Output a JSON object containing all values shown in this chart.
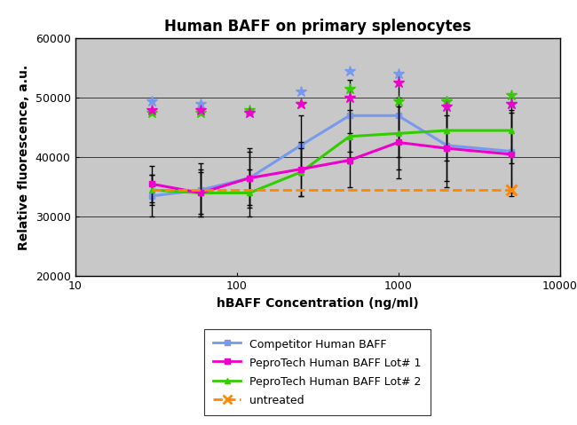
{
  "title": "Human BAFF on primary splenocytes",
  "xlabel": "hBAFF Concentration (ng/ml)",
  "ylabel": "Relative fluorescence, a.u.",
  "xlim": [
    10,
    10000
  ],
  "ylim": [
    20000,
    60000
  ],
  "yticks": [
    20000,
    30000,
    40000,
    50000,
    60000
  ],
  "xticks": [
    10,
    100,
    1000,
    10000
  ],
  "background_color": "#c8c8c8",
  "competitor": {
    "x": [
      30,
      60,
      120,
      250,
      500,
      1000,
      2000,
      5000
    ],
    "y": [
      33500,
      34500,
      36500,
      42000,
      47000,
      47000,
      42000,
      41000
    ],
    "yerr_lo": [
      3500,
      4500,
      4500,
      5000,
      6000,
      7000,
      7000,
      7000
    ],
    "yerr_hi": [
      3500,
      4500,
      4500,
      5000,
      6000,
      7000,
      7000,
      7000
    ],
    "star_y": [
      49500,
      49000,
      47500,
      51000,
      54500,
      54000,
      49500,
      49000
    ],
    "color": "#7799ee",
    "label": "Competitor Human BAFF",
    "marker": "s",
    "linestyle": "-"
  },
  "pepro1": {
    "x": [
      30,
      60,
      120,
      250,
      500,
      1000,
      2000,
      5000
    ],
    "y": [
      35500,
      34000,
      36500,
      38000,
      39500,
      42500,
      41500,
      40500
    ],
    "yerr_lo": [
      3000,
      4000,
      5000,
      4500,
      4500,
      6000,
      5500,
      7000
    ],
    "yerr_hi": [
      3000,
      4000,
      5000,
      4500,
      4500,
      6000,
      5500,
      7000
    ],
    "star_y": [
      48000,
      48000,
      47500,
      49000,
      50000,
      52500,
      48500,
      49000
    ],
    "color": "#ee00cc",
    "label": "PeproTech Human BAFF Lot# 1",
    "marker": "s",
    "linestyle": "-"
  },
  "pepro2": {
    "x": [
      30,
      60,
      120,
      250,
      500,
      1000,
      2000,
      5000
    ],
    "y": [
      34500,
      34000,
      34000,
      37500,
      43500,
      44000,
      44500,
      44500
    ],
    "yerr_lo": [
      2500,
      3500,
      4000,
      4000,
      4500,
      6000,
      5000,
      5500
    ],
    "yerr_hi": [
      2500,
      3500,
      4000,
      4000,
      4500,
      6000,
      5000,
      5500
    ],
    "star_y": [
      47500,
      47500,
      48000,
      49000,
      51500,
      49500,
      49500,
      50500
    ],
    "color": "#33cc00",
    "label": "PeproTech Human BAFF Lot# 2",
    "marker": "^",
    "linestyle": "-"
  },
  "untreated": {
    "x": [
      30,
      5000
    ],
    "y": [
      34500,
      34500
    ],
    "color": "#ff8800",
    "label": "untreated",
    "marker": "x",
    "linestyle": "--"
  }
}
